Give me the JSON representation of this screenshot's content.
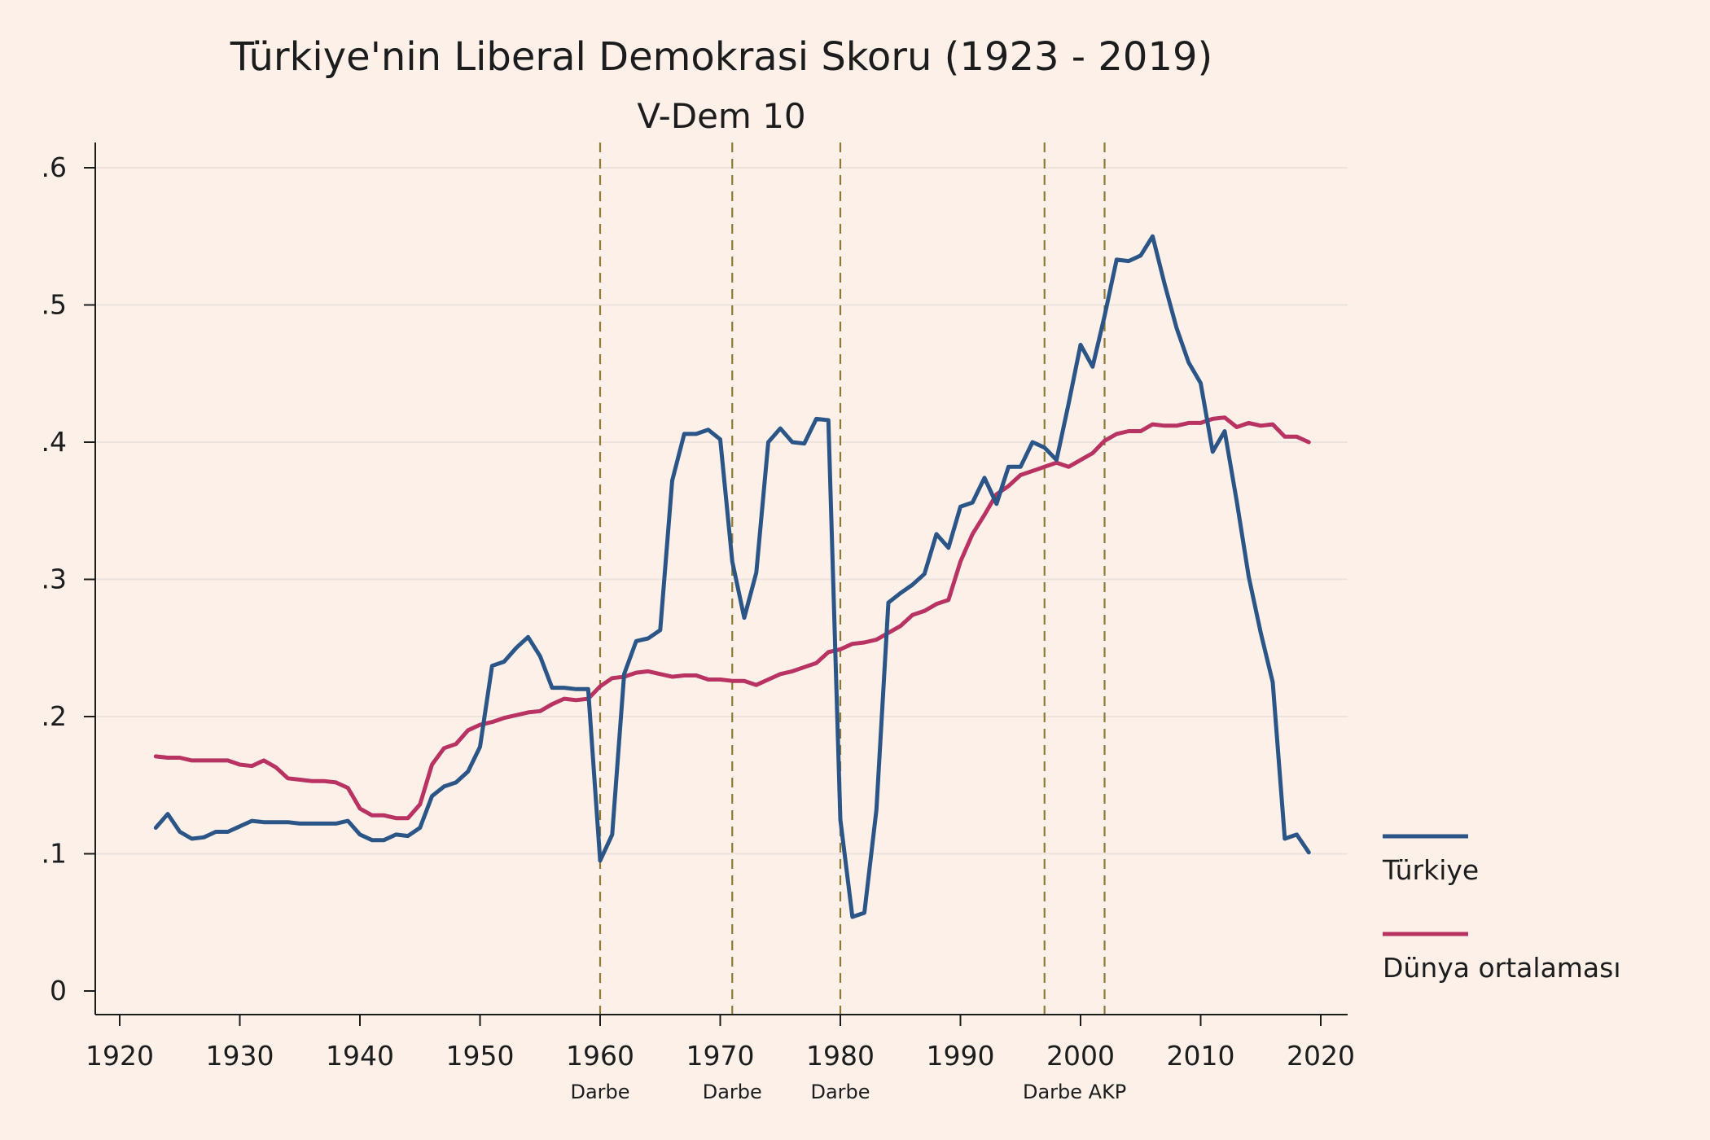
{
  "chart_data": {
    "type": "line",
    "title": "Türkiye'nin Liberal Demokrasi Skoru (1923 - 2019)",
    "subtitle": "V-Dem 10",
    "xlabel": "",
    "ylabel": "",
    "xlim": [
      1920,
      2020
    ],
    "ylim": [
      0,
      0.6
    ],
    "x_ticks": [
      1920,
      1930,
      1940,
      1950,
      1960,
      1970,
      1980,
      1990,
      2000,
      2010,
      2020
    ],
    "x_tick_labels": [
      "1920",
      "1930",
      "1940",
      "1950",
      "1960",
      "1970",
      "1980",
      "1990",
      "2000",
      "2010",
      "2020"
    ],
    "y_ticks": [
      0,
      0.1,
      0.2,
      0.3,
      0.4,
      0.5,
      0.6
    ],
    "y_tick_labels": [
      "0",
      ".1",
      ".2",
      ".3",
      ".4",
      ".5",
      ".6"
    ],
    "grid": "horizontal",
    "legend_position": "right",
    "event_lines": [
      {
        "x": 1960,
        "label": "Darbe"
      },
      {
        "x": 1971,
        "label": "Darbe"
      },
      {
        "x": 1980,
        "label": "Darbe"
      },
      {
        "x": 1997,
        "label": ""
      },
      {
        "x": 2002,
        "label": ""
      }
    ],
    "event_label_groups": [
      {
        "x": 1960,
        "label": "Darbe"
      },
      {
        "x": 1971,
        "label": "Darbe"
      },
      {
        "x": 1980,
        "label": "Darbe"
      },
      {
        "x": 1999.5,
        "label": "Darbe AKP"
      }
    ],
    "x": [
      1923,
      1924,
      1925,
      1926,
      1927,
      1928,
      1929,
      1930,
      1931,
      1932,
      1933,
      1934,
      1935,
      1936,
      1937,
      1938,
      1939,
      1940,
      1941,
      1942,
      1943,
      1944,
      1945,
      1946,
      1947,
      1948,
      1949,
      1950,
      1951,
      1952,
      1953,
      1954,
      1955,
      1956,
      1957,
      1958,
      1959,
      1960,
      1961,
      1962,
      1963,
      1964,
      1965,
      1966,
      1967,
      1968,
      1969,
      1970,
      1971,
      1972,
      1973,
      1974,
      1975,
      1976,
      1977,
      1978,
      1979,
      1980,
      1981,
      1982,
      1983,
      1984,
      1985,
      1986,
      1987,
      1988,
      1989,
      1990,
      1991,
      1992,
      1993,
      1994,
      1995,
      1996,
      1997,
      1998,
      1999,
      2000,
      2001,
      2002,
      2003,
      2004,
      2005,
      2006,
      2007,
      2008,
      2009,
      2010,
      2011,
      2012,
      2013,
      2014,
      2015,
      2016,
      2017,
      2018,
      2019
    ],
    "series": [
      {
        "name": "Türkiye",
        "color": "#2a5586",
        "values": [
          0.119,
          0.129,
          0.116,
          0.111,
          0.112,
          0.116,
          0.116,
          0.12,
          0.124,
          0.123,
          0.123,
          0.123,
          0.122,
          0.122,
          0.122,
          0.122,
          0.124,
          0.114,
          0.11,
          0.11,
          0.114,
          0.113,
          0.119,
          0.142,
          0.149,
          0.152,
          0.16,
          0.178,
          0.237,
          0.24,
          0.25,
          0.258,
          0.244,
          0.221,
          0.221,
          0.22,
          0.22,
          0.095,
          0.114,
          0.231,
          0.255,
          0.257,
          0.263,
          0.372,
          0.406,
          0.406,
          0.409,
          0.402,
          0.313,
          0.272,
          0.305,
          0.4,
          0.41,
          0.4,
          0.399,
          0.417,
          0.416,
          0.125,
          0.054,
          0.057,
          0.132,
          0.283,
          0.29,
          0.296,
          0.304,
          0.333,
          0.323,
          0.353,
          0.356,
          0.374,
          0.355,
          0.382,
          0.382,
          0.4,
          0.396,
          0.387,
          0.428,
          0.471,
          0.455,
          0.492,
          0.533,
          0.532,
          0.536,
          0.55,
          0.515,
          0.483,
          0.458,
          0.443,
          0.393,
          0.408,
          0.357,
          0.302,
          0.261,
          0.225,
          0.111,
          0.114,
          0.101
        ]
      },
      {
        "name": "Dünya ortalaması",
        "color": "#b83262",
        "values": [
          0.171,
          0.17,
          0.17,
          0.168,
          0.168,
          0.168,
          0.168,
          0.165,
          0.164,
          0.168,
          0.163,
          0.155,
          0.154,
          0.153,
          0.153,
          0.152,
          0.148,
          0.133,
          0.128,
          0.128,
          0.126,
          0.126,
          0.136,
          0.165,
          0.177,
          0.18,
          0.19,
          0.194,
          0.196,
          0.199,
          0.201,
          0.203,
          0.204,
          0.209,
          0.213,
          0.212,
          0.213,
          0.222,
          0.228,
          0.229,
          0.232,
          0.233,
          0.231,
          0.229,
          0.23,
          0.23,
          0.227,
          0.227,
          0.226,
          0.226,
          0.223,
          0.227,
          0.231,
          0.233,
          0.236,
          0.239,
          0.247,
          0.249,
          0.253,
          0.254,
          0.256,
          0.261,
          0.266,
          0.274,
          0.277,
          0.282,
          0.285,
          0.313,
          0.333,
          0.347,
          0.362,
          0.368,
          0.376,
          0.379,
          0.382,
          0.385,
          0.382,
          0.387,
          0.392,
          0.401,
          0.406,
          0.408,
          0.408,
          0.413,
          0.412,
          0.412,
          0.414,
          0.414,
          0.417,
          0.418,
          0.411,
          0.414,
          0.412,
          0.413,
          0.404,
          0.404,
          0.4
        ]
      }
    ]
  }
}
